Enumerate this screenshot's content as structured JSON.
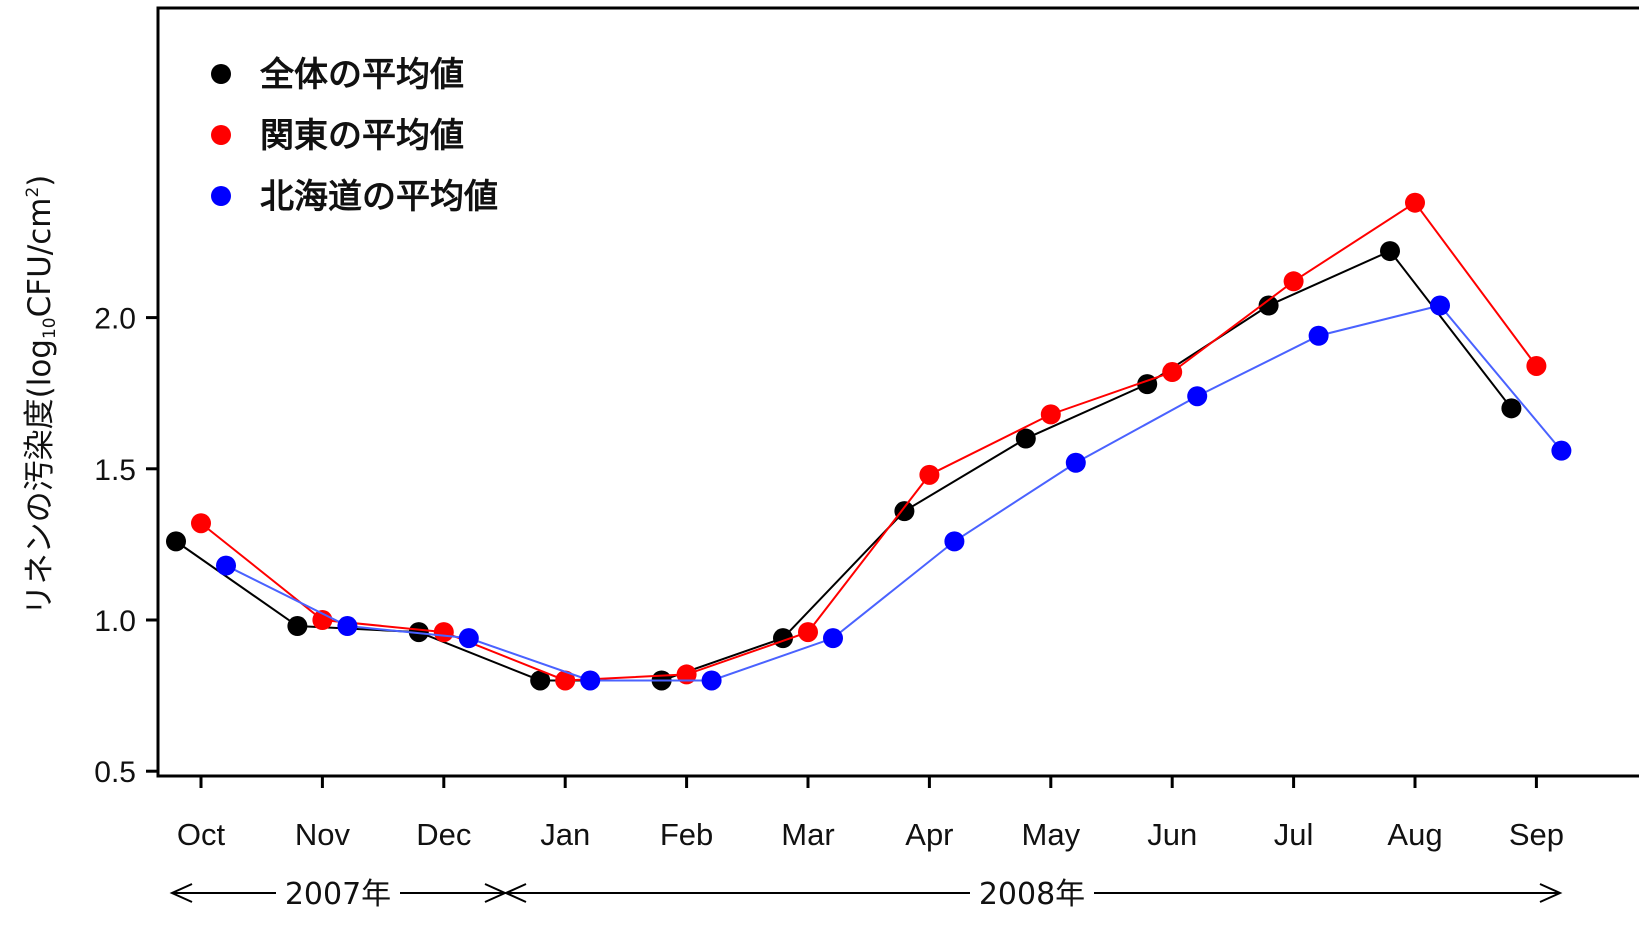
{
  "chart_data": {
    "type": "line",
    "ylabel": {
      "main": "リネンの汚染度",
      "unit_open": "(log",
      "unit_sub": "10",
      "unit_mid": "CFU/cm",
      "unit_sup": "2",
      "unit_close": ")"
    },
    "y_ticks": [
      "0.5",
      "1.0",
      "1.5",
      "2.0"
    ],
    "ylim": [
      0,
      2.5
    ],
    "months": [
      "Oct",
      "Nov",
      "Dec",
      "Jan",
      "Feb",
      "Mar",
      "Apr",
      "May",
      "Jun",
      "Jul",
      "Aug",
      "Sep"
    ],
    "years": [
      {
        "label": "2007年",
        "from_month": "Oct",
        "to_month": "Dec"
      },
      {
        "label": "2008年",
        "from_month": "Jan",
        "to_month": "Sep"
      }
    ],
    "legend_position": "top-left",
    "series": [
      {
        "name": "全体の平均値",
        "color": "#000000",
        "line_color": "#000000",
        "values": [
          1.26,
          0.98,
          0.96,
          0.8,
          0.8,
          0.94,
          1.36,
          1.6,
          1.78,
          2.04,
          2.22,
          1.7
        ]
      },
      {
        "name": "関東の平均値",
        "color": "#ff0000",
        "line_color": "#ff0000",
        "values": [
          1.32,
          1.0,
          0.96,
          0.8,
          0.82,
          0.96,
          1.48,
          1.68,
          1.82,
          2.12,
          2.38,
          1.84
        ]
      },
      {
        "name": "北海道の平均値",
        "color": "#0000ff",
        "line_color": "#4a62ff",
        "values": [
          1.18,
          0.98,
          0.94,
          0.8,
          0.8,
          0.94,
          1.26,
          1.52,
          1.74,
          1.94,
          2.04,
          1.56
        ]
      }
    ]
  }
}
